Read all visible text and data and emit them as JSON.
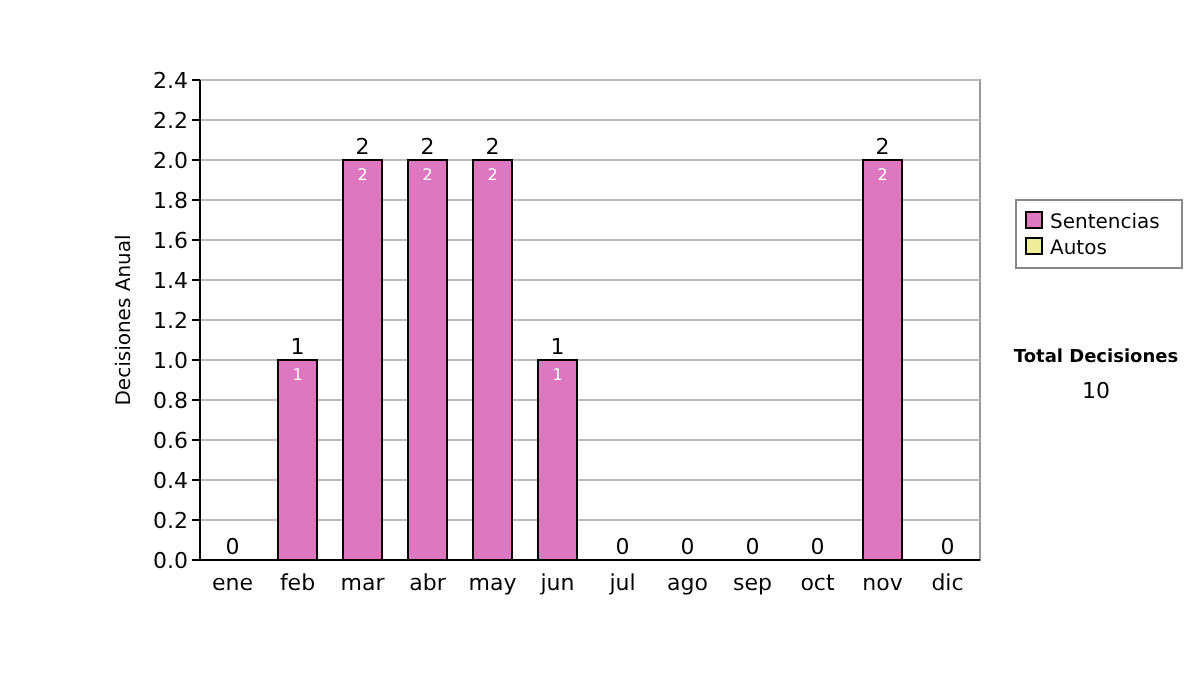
{
  "chart_data": {
    "type": "bar",
    "stacked": true,
    "ylabel": "Decisiones Anual",
    "categories": [
      "ene",
      "feb",
      "mar",
      "abr",
      "may",
      "jun",
      "jul",
      "ago",
      "sep",
      "oct",
      "nov",
      "dic"
    ],
    "series": [
      {
        "name": "Sentencias",
        "color": "#dd77c0",
        "values": [
          0,
          1,
          2,
          2,
          2,
          1,
          0,
          0,
          0,
          0,
          2,
          0
        ],
        "value_labels": [
          null,
          "1",
          "2",
          "2",
          "2",
          "1",
          null,
          null,
          null,
          null,
          "2",
          null
        ]
      },
      {
        "name": "Autos",
        "color": "#eeee99",
        "values": [
          0,
          0,
          0,
          0,
          0,
          0,
          0,
          0,
          0,
          0,
          0,
          0
        ]
      }
    ],
    "totals": [
      "0",
      "1",
      "2",
      "2",
      "2",
      "1",
      "0",
      "0",
      "0",
      "0",
      "2",
      "0"
    ],
    "ylim": [
      0,
      2.4
    ],
    "yticks": [
      {
        "value": 0,
        "label": "0.0"
      },
      {
        "value": 0.2,
        "label": "0.2"
      },
      {
        "value": 0.4,
        "label": "0.4"
      },
      {
        "value": 0.6,
        "label": "0.6"
      },
      {
        "value": 0.8,
        "label": "0.8"
      },
      {
        "value": 1,
        "label": "1.0"
      },
      {
        "value": 1.2,
        "label": "1.2"
      },
      {
        "value": 1.4,
        "label": "1.4"
      },
      {
        "value": 1.6,
        "label": "1.6"
      },
      {
        "value": 1.8,
        "label": "1.8"
      },
      {
        "value": 2,
        "label": "2.0"
      },
      {
        "value": 2.2,
        "label": "2.2"
      },
      {
        "value": 2.4,
        "label": "2.4"
      }
    ],
    "grid": "y",
    "legend": "right",
    "annotations": [
      "Total Decisiones",
      "10"
    ]
  }
}
